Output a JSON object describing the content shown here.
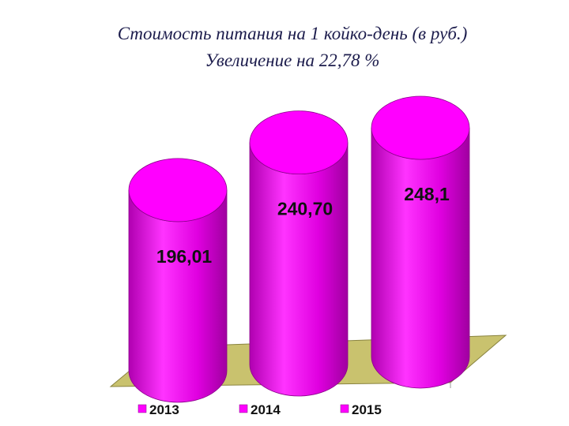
{
  "chart_data": {
    "type": "bar",
    "title": "Стоимость питания на 1 койко-день  (в руб.)",
    "subtitle": "Увеличение на 22,78 %",
    "series": [
      {
        "name": "2013",
        "color": "#ff00ff",
        "values": [
          196.01
        ],
        "value_labels": [
          "196,01"
        ]
      },
      {
        "name": "2014",
        "color": "#ff00ff",
        "values": [
          240.7
        ],
        "value_labels": [
          "240,70"
        ]
      },
      {
        "name": "2015",
        "color": "#ff00ff",
        "values": [
          248.1
        ],
        "value_labels": [
          "248,1"
        ]
      }
    ]
  }
}
